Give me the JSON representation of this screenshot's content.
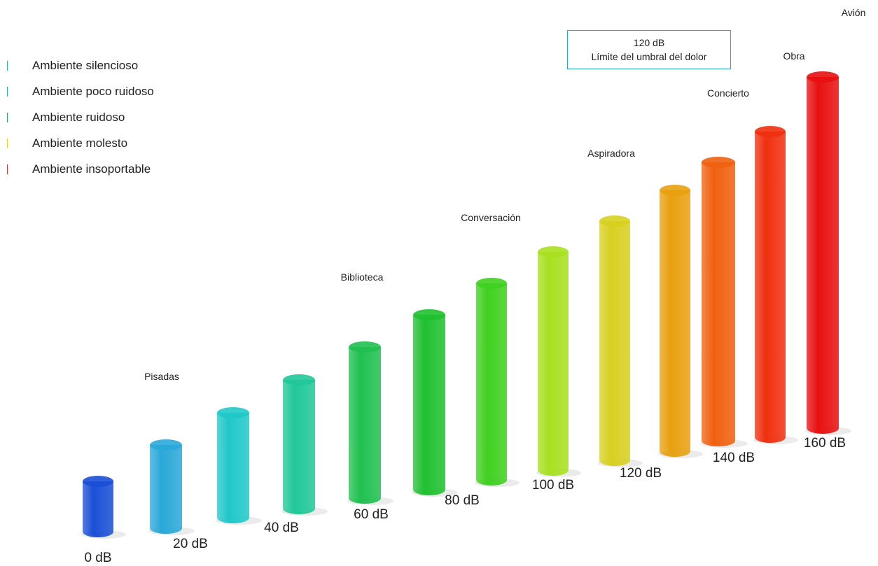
{
  "legend": [
    {
      "label": "Ambiente silencioso",
      "color": "#2bb3c0"
    },
    {
      "label": "Ambiente poco ruidoso",
      "color": "#2bb3c0"
    },
    {
      "label": "Ambiente ruidoso",
      "color": "#2aa86a"
    },
    {
      "label": "Ambiente molesto",
      "color": "#f0d020"
    },
    {
      "label": "Ambiente insoportable",
      "color": "#e03030"
    }
  ],
  "callout": {
    "line1": "120 dB",
    "line2": "Límite del umbral del dolor"
  },
  "levels": [
    "0 dB",
    "20 dB",
    "40 dB",
    "60 dB",
    "80 dB",
    "100 dB",
    "120 dB",
    "140 dB",
    "160 dB"
  ],
  "examples": [
    "Pisadas",
    "Biblioteca",
    "Conversación",
    "Aspiradora",
    "Concierto",
    "Obra",
    "Avión"
  ]
}
